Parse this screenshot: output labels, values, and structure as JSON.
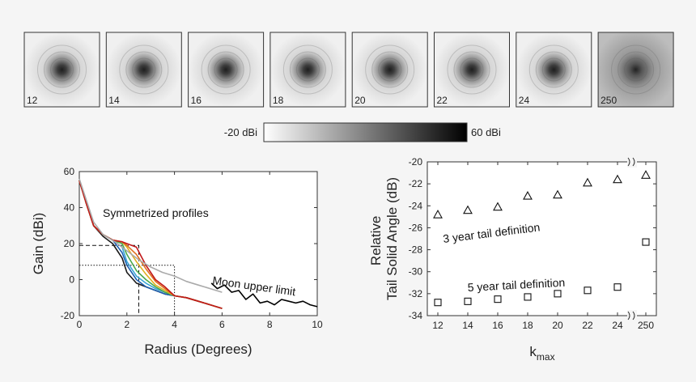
{
  "thumbnails": {
    "labels": [
      "12",
      "14",
      "16",
      "18",
      "20",
      "22",
      "24",
      "250"
    ]
  },
  "colorbar": {
    "min_label": "-20 dBi",
    "max_label": "60 dBi"
  },
  "chart_data": [
    {
      "type": "line",
      "xlabel": "Radius (Degrees)",
      "ylabel": "Gain (dBi)",
      "xlim": [
        0,
        10
      ],
      "ylim": [
        -20,
        60
      ],
      "xticks": [
        "0",
        "2",
        "4",
        "6",
        "8",
        "10"
      ],
      "yticks": [
        "-20",
        "0",
        "20",
        "40",
        "60"
      ],
      "annotations": [
        "Symmetrized profiles",
        "Moon upper limit"
      ],
      "series": [
        {
          "color": "#1a1a1a",
          "x": [
            0,
            0.3,
            0.6,
            1.0,
            1.4,
            1.8,
            2.0,
            2.4,
            2.8,
            3.2,
            3.6,
            4.0,
            4.5,
            5.0,
            5.5,
            6.0
          ],
          "y": [
            55,
            42,
            30,
            24,
            20,
            12,
            4,
            -2,
            -4,
            -6,
            -8,
            -9,
            -10,
            -12,
            -14,
            -16
          ]
        },
        {
          "color": "#1e5fb0",
          "x": [
            0,
            0.3,
            0.6,
            1.0,
            1.4,
            1.8,
            2.0,
            2.4,
            2.8,
            3.2,
            3.6,
            4.0,
            4.5,
            5.0,
            5.5,
            6.0
          ],
          "y": [
            55,
            42,
            30,
            25,
            22,
            15,
            8,
            0,
            -4,
            -6,
            -8,
            -9,
            -10,
            -12,
            -14,
            -16
          ]
        },
        {
          "color": "#38a6d6",
          "x": [
            0,
            0.3,
            0.6,
            1.0,
            1.4,
            1.8,
            2.0,
            2.4,
            2.8,
            3.2,
            3.6,
            4.0,
            4.5,
            5.0,
            5.5,
            6.0
          ],
          "y": [
            55,
            42,
            30,
            25,
            22,
            18,
            10,
            2,
            -2,
            -5,
            -7,
            -9,
            -10,
            -12,
            -14,
            -16
          ]
        },
        {
          "color": "#4aa84a",
          "x": [
            0,
            0.3,
            0.6,
            1.0,
            1.4,
            1.8,
            2.0,
            2.4,
            2.8,
            3.2,
            3.6,
            4.0,
            4.5,
            5.0,
            5.5,
            6.0
          ],
          "y": [
            55,
            42,
            30,
            25,
            22,
            20,
            14,
            5,
            0,
            -4,
            -7,
            -9,
            -10,
            -12,
            -14,
            -16
          ]
        },
        {
          "color": "#e0b020",
          "x": [
            0,
            0.3,
            0.6,
            1.0,
            1.4,
            1.8,
            2.0,
            2.4,
            2.8,
            3.2,
            3.6,
            4.0,
            4.5,
            5.0,
            5.5,
            6.0
          ],
          "y": [
            55,
            42,
            30,
            25,
            22,
            21,
            18,
            10,
            3,
            -3,
            -6,
            -9,
            -10,
            -12,
            -14,
            -16
          ]
        },
        {
          "color": "#e07020",
          "x": [
            0,
            0.3,
            0.6,
            1.0,
            1.4,
            1.8,
            2.0,
            2.4,
            2.8,
            3.2,
            3.6,
            4.0,
            4.5,
            5.0,
            5.5,
            6.0
          ],
          "y": [
            55,
            42,
            30,
            25,
            22,
            21,
            19,
            14,
            6,
            -1,
            -5,
            -9,
            -10,
            -12,
            -14,
            -16
          ]
        },
        {
          "color": "#c0181a",
          "x": [
            0,
            0.3,
            0.6,
            1.0,
            1.4,
            1.8,
            2.0,
            2.4,
            2.6,
            2.8,
            3.2,
            3.6,
            4.0,
            4.5,
            5.0,
            5.5,
            6.0
          ],
          "y": [
            55,
            42,
            30,
            25,
            22,
            21,
            20,
            18,
            13,
            8,
            0,
            -4,
            -9,
            -10,
            -12,
            -14,
            -16
          ]
        },
        {
          "color": "#aaaaaa",
          "x": [
            0,
            0.3,
            0.6,
            1.0,
            1.5,
            2.0,
            2.5,
            3.0,
            3.5,
            4.0,
            4.5,
            5.0,
            5.5,
            6.0
          ],
          "y": [
            56,
            44,
            32,
            25,
            21,
            16,
            11,
            7,
            4,
            2,
            -1,
            -3,
            -5,
            -7
          ]
        },
        {
          "color": "#000000",
          "x": [
            5.55,
            5.8,
            6.1,
            6.4,
            6.7,
            7.0,
            7.3,
            7.6,
            7.9,
            8.2,
            8.5,
            8.8,
            9.1,
            9.4,
            9.7,
            10.0
          ],
          "y": [
            -2,
            -5,
            -3,
            -7,
            -6,
            -11,
            -8,
            -13,
            -12,
            -14,
            -11,
            -12,
            -13,
            -12,
            -14,
            -15
          ]
        }
      ],
      "boxes": [
        {
          "x0": 0,
          "x1": 2.5,
          "y0": -20,
          "y1": 19,
          "style": "dashed"
        },
        {
          "x0": 0,
          "x1": 4.0,
          "y0": -20,
          "y1": 8,
          "style": "dotted"
        }
      ]
    },
    {
      "type": "scatter",
      "xlabel": "k",
      "xlabel_sub": "max",
      "ylabel": [
        "Relative",
        "Tail Solid Angle (dB)"
      ],
      "ylim": [
        -34,
        -20
      ],
      "categories": [
        "12",
        "14",
        "16",
        "18",
        "20",
        "22",
        "24",
        "250"
      ],
      "yticks": [
        "-20",
        "-22",
        "-24",
        "-26",
        "-28",
        "-30",
        "-32",
        "-34"
      ],
      "annotations": [
        "3 year tail definition",
        "5 year tail definition"
      ],
      "series": [
        {
          "marker": "triangle",
          "values": [
            -24.8,
            -24.4,
            -24.1,
            -23.1,
            -23.0,
            -21.9,
            -21.6,
            -21.2
          ]
        },
        {
          "marker": "square",
          "values": [
            -32.8,
            -32.7,
            -32.5,
            -32.3,
            -32.0,
            -31.7,
            -31.4,
            -27.3
          ]
        }
      ]
    }
  ]
}
